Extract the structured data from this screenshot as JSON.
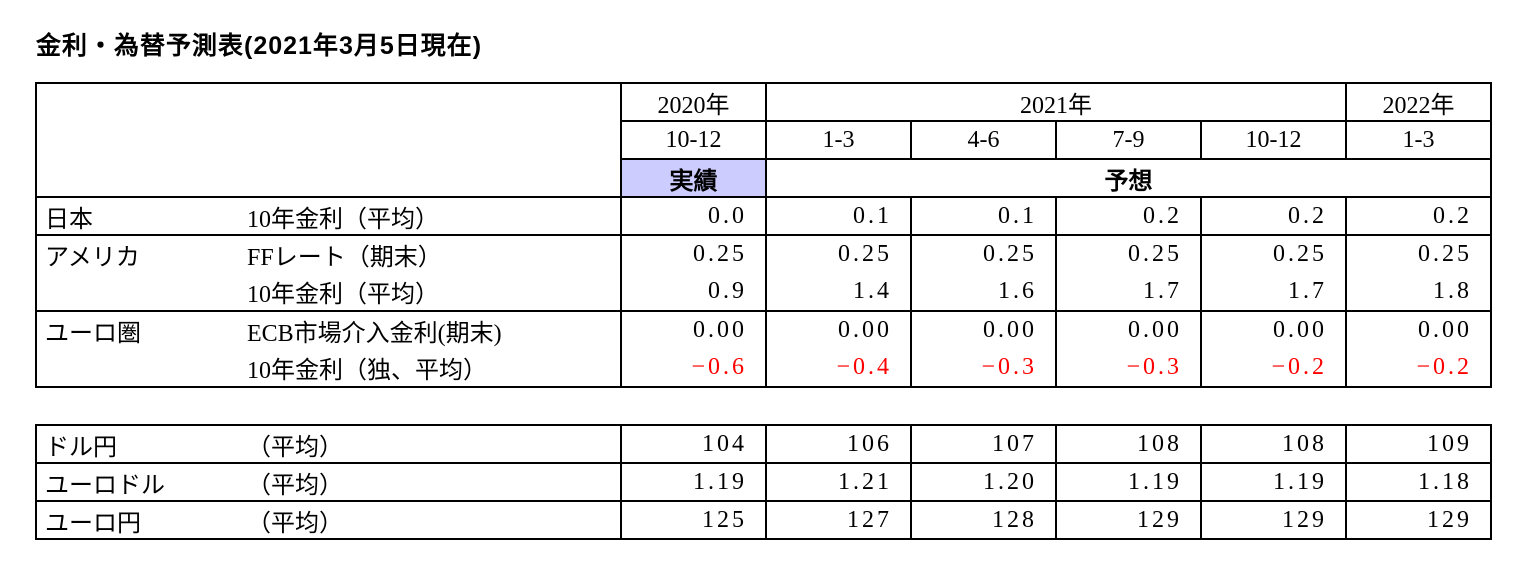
{
  "title": "金利・為替予測表(2021年3月5日現在)",
  "colors": {
    "background": "#ffffff",
    "text": "#000000",
    "border": "#000000",
    "actual-bg": "#ccccff",
    "negative-text": "#ff0000"
  },
  "rates_table": {
    "year_headers": [
      "2020年",
      "2021年",
      "2022年"
    ],
    "quarter_headers": [
      "10-12",
      "1-3",
      "4-6",
      "7-9",
      "10-12",
      "1-3"
    ],
    "actual_label": "実績",
    "forecast_label": "予想",
    "rows": [
      {
        "region": "日本",
        "metric": "10年金利（平均）",
        "values": [
          "0.0",
          "0.1",
          "0.1",
          "0.2",
          "0.2",
          "0.2"
        ]
      },
      {
        "region": "アメリカ",
        "metric": "FFレート（期末）",
        "values": [
          "0.25",
          "0.25",
          "0.25",
          "0.25",
          "0.25",
          "0.25"
        ]
      },
      {
        "region": "",
        "metric": "10年金利（平均）",
        "values": [
          "0.9",
          "1.4",
          "1.6",
          "1.7",
          "1.7",
          "1.8"
        ]
      },
      {
        "region": "ユーロ圏",
        "metric": "ECB市場介入金利(期末)",
        "values": [
          "0.00",
          "0.00",
          "0.00",
          "0.00",
          "0.00",
          "0.00"
        ]
      },
      {
        "region": "",
        "metric": "10年金利（独、平均）",
        "values": [
          "−0.6",
          "−0.4",
          "−0.3",
          "−0.3",
          "−0.2",
          "−0.2"
        ]
      }
    ]
  },
  "fx_table": {
    "rows": [
      {
        "label": "ドル円",
        "metric": "（平均）",
        "values": [
          "104",
          "106",
          "107",
          "108",
          "108",
          "109"
        ]
      },
      {
        "label": "ユーロドル",
        "metric": "（平均）",
        "values": [
          "1.19",
          "1.21",
          "1.20",
          "1.19",
          "1.19",
          "1.18"
        ]
      },
      {
        "label": "ユーロ円",
        "metric": "（平均）",
        "values": [
          "125",
          "127",
          "128",
          "129",
          "129",
          "129"
        ]
      }
    ]
  }
}
